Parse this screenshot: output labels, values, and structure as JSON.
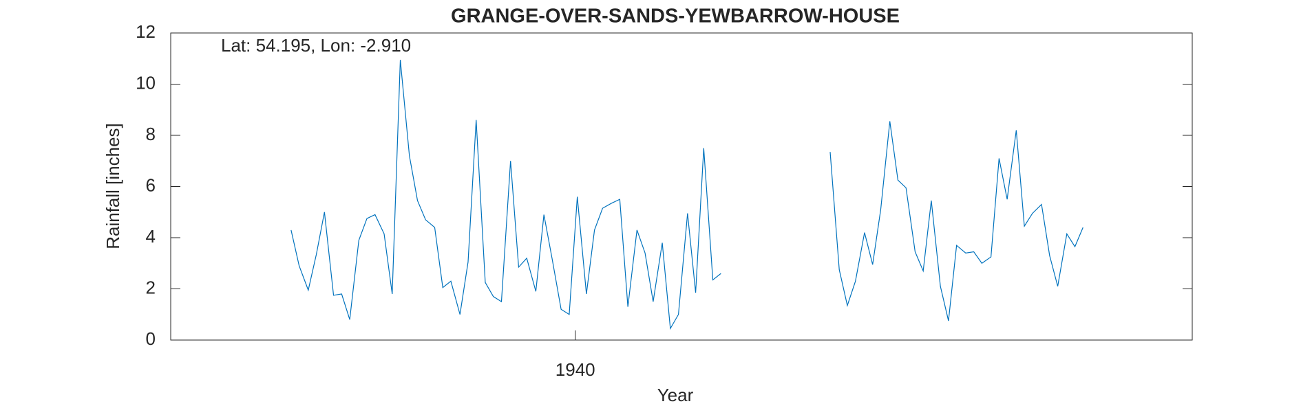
{
  "chart_data": {
    "type": "line",
    "title": "GRANGE-OVER-SANDS-YEWBARROW-HOUSE",
    "annotation": "Lat: 54.195, Lon: -2.910",
    "x_label": "Year",
    "y_label": "Rainfall [inches]",
    "xlim": [
      1936,
      1946.1
    ],
    "xticks": [
      1940
    ],
    "ylim": [
      0,
      12
    ],
    "yticks": [
      0,
      2,
      4,
      6,
      8,
      10,
      12
    ],
    "x": [
      1937.19,
      1937.27,
      1937.36,
      1937.44,
      1937.52,
      1937.61,
      1937.69,
      1937.77,
      1937.86,
      1937.94,
      1938.02,
      1938.11,
      1938.19,
      1938.27,
      1938.36,
      1938.44,
      1938.52,
      1938.61,
      1938.69,
      1938.77,
      1938.86,
      1938.94,
      1939.02,
      1939.11,
      1939.19,
      1939.27,
      1939.36,
      1939.44,
      1939.52,
      1939.61,
      1939.69,
      1939.77,
      1939.86,
      1939.94,
      1940.02,
      1940.11,
      1940.19,
      1940.27,
      1940.36,
      1940.44,
      1940.52,
      1940.61,
      1940.69,
      1940.77,
      1940.86,
      1940.94,
      1941.02,
      1941.11,
      1941.19,
      1941.27,
      1941.36,
      1941.44,
      1941.52,
      1941.61,
      1941.69,
      1941.77,
      1941.86,
      1941.94,
      1942.02,
      1942.11,
      1942.19,
      1942.27,
      1942.36,
      1942.44,
      1942.52,
      1942.61,
      1942.69,
      1942.77,
      1942.86,
      1942.94,
      1943.02,
      1943.11,
      1943.19,
      1943.27,
      1943.36,
      1943.44,
      1943.52,
      1943.61,
      1943.69,
      1943.77,
      1943.86,
      1943.94,
      1944.02,
      1944.11,
      1944.19,
      1944.27,
      1944.36,
      1944.44,
      1944.52,
      1944.61,
      1944.69,
      1944.77,
      1944.86,
      1944.94,
      1945.02
    ],
    "series": [
      {
        "name": "Rainfall",
        "color": "#0072bd",
        "values": [
          4.3,
          2.9,
          1.95,
          3.35,
          5.0,
          1.75,
          1.8,
          0.8,
          3.9,
          4.75,
          4.9,
          4.15,
          1.8,
          10.95,
          7.2,
          5.45,
          4.7,
          4.4,
          2.05,
          2.3,
          1.0,
          3.05,
          8.6,
          2.25,
          1.7,
          1.5,
          7.0,
          2.85,
          3.2,
          1.9,
          4.9,
          3.2,
          1.2,
          1.0,
          5.6,
          1.8,
          4.3,
          5.15,
          5.35,
          5.5,
          1.3,
          4.3,
          3.4,
          1.5,
          3.8,
          0.45,
          1.0,
          4.95,
          1.85,
          7.5,
          2.35,
          2.6,
          null,
          null,
          null,
          null,
          null,
          null,
          null,
          null,
          null,
          null,
          null,
          null,
          7.35,
          2.75,
          1.35,
          2.3,
          4.2,
          2.95,
          5.1,
          8.55,
          6.25,
          5.95,
          3.45,
          2.7,
          5.45,
          2.1,
          0.75,
          3.7,
          3.4,
          3.45,
          3.0,
          3.25,
          7.1,
          5.5,
          8.2,
          4.45,
          4.95,
          5.3,
          3.3,
          2.1,
          4.15,
          3.65,
          4.4
        ]
      }
    ]
  }
}
